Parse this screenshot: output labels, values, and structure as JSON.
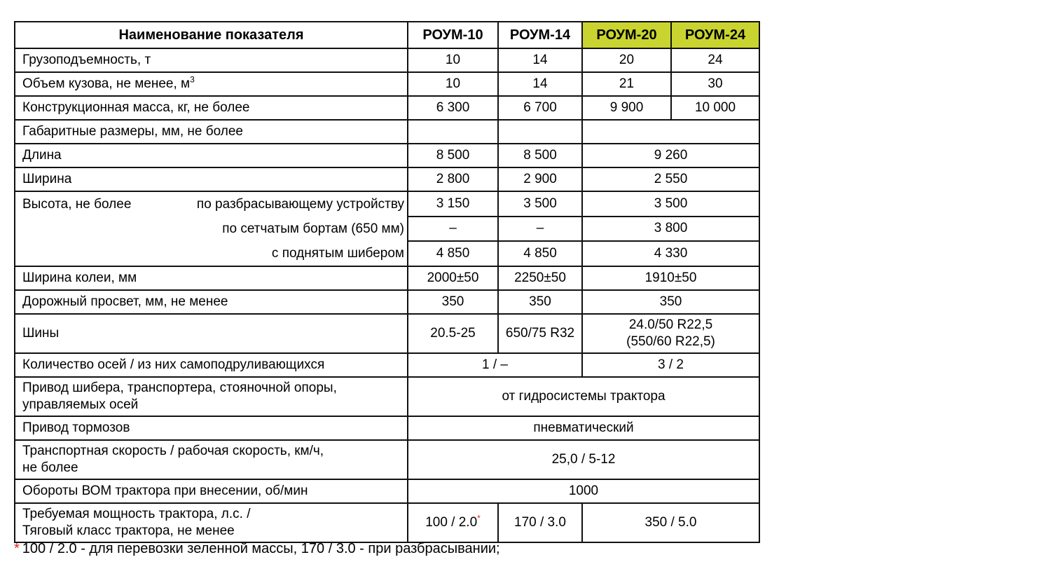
{
  "colors": {
    "highlight": "#c9d430",
    "accent_red": "#e3241d",
    "border": "#111111",
    "text": "#000000",
    "background": "#ffffff"
  },
  "table": {
    "header": {
      "name_col": "Наименование показателя",
      "models": [
        {
          "label": "РОУМ-10",
          "highlight": false
        },
        {
          "label": "РОУМ-14",
          "highlight": false
        },
        {
          "label": "РОУМ-20",
          "highlight": true
        },
        {
          "label": "РОУМ-24",
          "highlight": true
        }
      ]
    },
    "rows": [
      {
        "cells": [
          {
            "t": "Грузоподъемность, т",
            "label": true
          },
          {
            "t": "10"
          },
          {
            "t": "14"
          },
          {
            "t": "20"
          },
          {
            "t": "24"
          }
        ]
      },
      {
        "cells": [
          {
            "t": "Объем кузова, не менее, м",
            "sup": "3",
            "label": true
          },
          {
            "t": "10"
          },
          {
            "t": "14"
          },
          {
            "t": "21"
          },
          {
            "t": "30"
          }
        ]
      },
      {
        "cells": [
          {
            "t": "Конструкционная масса, кг, не более",
            "label": true
          },
          {
            "t": "6 300"
          },
          {
            "t": "6 700"
          },
          {
            "t": "9 900"
          },
          {
            "t": "10 000"
          }
        ]
      },
      {
        "cells": [
          {
            "t": "Габаритные размеры, мм, не более",
            "label": true
          },
          {
            "t": ""
          },
          {
            "t": ""
          },
          {
            "t": "",
            "cs": 2
          }
        ]
      },
      {
        "cells": [
          {
            "t": "Длина",
            "label": true
          },
          {
            "t": "8 500"
          },
          {
            "t": "8 500"
          },
          {
            "t": "9 260",
            "cs": 2
          }
        ]
      },
      {
        "cells": [
          {
            "t": "Ширина",
            "label": true
          },
          {
            "t": "2 800"
          },
          {
            "t": "2 900"
          },
          {
            "t": "2 550",
            "cs": 2
          }
        ]
      },
      {
        "cells": [
          {
            "type": "height",
            "rs": 3,
            "left": "Высота, не более",
            "lines": [
              "по разбрасывающему устройству",
              "по сетчатым бортам (650 мм)",
              "с поднятым шибером"
            ]
          },
          {
            "t": "3 150"
          },
          {
            "t": "3 500"
          },
          {
            "t": "3 500",
            "cs": 2
          }
        ]
      },
      {
        "cells": [
          {
            "t": "–"
          },
          {
            "t": "–"
          },
          {
            "t": "3 800",
            "cs": 2
          }
        ]
      },
      {
        "cells": [
          {
            "t": "4 850"
          },
          {
            "t": "4 850"
          },
          {
            "t": "4 330",
            "cs": 2
          }
        ]
      },
      {
        "cells": [
          {
            "t": "Ширина колеи, мм",
            "label": true
          },
          {
            "t": "2000±50"
          },
          {
            "t": "2250±50"
          },
          {
            "t": "1910±50",
            "cs": 2
          }
        ]
      },
      {
        "cells": [
          {
            "t": "Дорожный просвет, мм, не менее",
            "label": true
          },
          {
            "t": "350"
          },
          {
            "t": "350"
          },
          {
            "t": "350",
            "cs": 2
          }
        ]
      },
      {
        "cells": [
          {
            "t": "Шины",
            "label": true
          },
          {
            "t": "20.5-25"
          },
          {
            "t": "650/75 R32"
          },
          {
            "t": "24.0/50 R22,5\n(550/60 R22,5)",
            "cs": 2
          }
        ]
      },
      {
        "cells": [
          {
            "t": "Количество осей / из них самоподруливающихся",
            "label": true
          },
          {
            "t": "1 / –",
            "cs": 2
          },
          {
            "t": "3 / 2",
            "cs": 2
          }
        ]
      },
      {
        "cells": [
          {
            "t": "Привод шибера, транспортера, стояночной опоры,\nуправляемых осей",
            "label": true
          },
          {
            "t": "от гидросистемы трактора",
            "cs": 4
          }
        ]
      },
      {
        "cells": [
          {
            "t": "Привод тормозов",
            "label": true
          },
          {
            "t": "пневматический",
            "cs": 4
          }
        ]
      },
      {
        "cells": [
          {
            "t": "Транспортная скорость / рабочая скорость, км/ч,\nне более",
            "label": true
          },
          {
            "t": "25,0 / 5-12",
            "cs": 4
          }
        ]
      },
      {
        "cells": [
          {
            "t": "Обороты ВОМ трактора при внесении, об/мин",
            "label": true
          },
          {
            "t": "1000",
            "cs": 4
          }
        ]
      },
      {
        "cells": [
          {
            "t": "Требуемая мощность трактора, л.с. /\nТяговый класс трактора, не менее",
            "label": true
          },
          {
            "t": "100 / 2.0",
            "sup": "*",
            "supRed": true
          },
          {
            "t": "170 / 3.0"
          },
          {
            "t": "350 / 5.0",
            "cs": 2
          }
        ]
      }
    ]
  },
  "footnote": {
    "marker": "*",
    "text": "100 / 2.0 - для перевозки зеленной массы, 170 / 3.0 - при разбрасывании;"
  }
}
